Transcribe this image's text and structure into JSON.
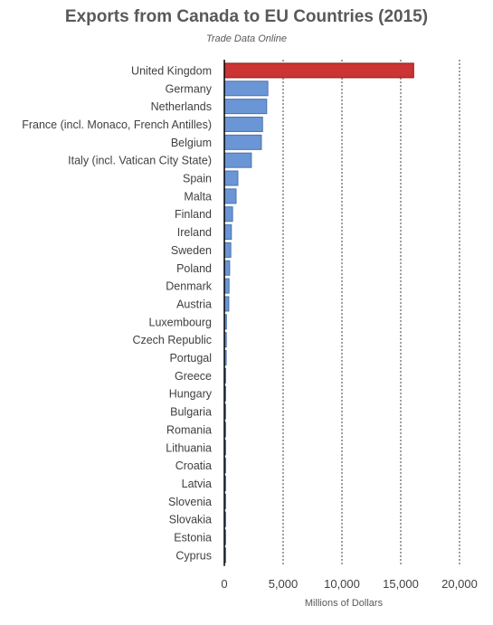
{
  "chart_data": {
    "type": "bar",
    "orientation": "horizontal",
    "title": "Exports from Canada to EU Countries (2015)",
    "subtitle": "Trade Data Online",
    "xlabel": "Millions of Dollars",
    "ylabel": "",
    "xlim": [
      0,
      20000
    ],
    "xticks": [
      0,
      5000,
      10000,
      15000,
      20000
    ],
    "xtick_labels": [
      "0",
      "5,000",
      "10,000",
      "15,000",
      "20,000"
    ],
    "grid": "vertical dotted",
    "legend": "none",
    "categories": [
      "United Kingdom",
      "Germany",
      "Netherlands",
      "France (incl. Monaco, French Antilles)",
      "Belgium",
      "Italy (incl. Vatican City State)",
      "Spain",
      "Malta",
      "Finland",
      "Ireland",
      "Sweden",
      "Poland",
      "Denmark",
      "Austria",
      "Luxembourg",
      "Czech Republic",
      "Portugal",
      "Greece",
      "Hungary",
      "Bulgaria",
      "Romania",
      "Lithuania",
      "Croatia",
      "Latvia",
      "Slovenia",
      "Slovakia",
      "Estonia",
      "Cyprus"
    ],
    "values": [
      16100,
      3700,
      3600,
      3250,
      3150,
      2300,
      1150,
      1000,
      700,
      600,
      550,
      450,
      400,
      380,
      180,
      170,
      160,
      90,
      80,
      70,
      70,
      60,
      50,
      40,
      40,
      30,
      25,
      20
    ],
    "colors": {
      "highlight": "#cc3333",
      "highlight_edge": "#8b1a1a",
      "bar": "#6b96d6",
      "bar_edge": "#4a72b0",
      "grid": "#404040"
    },
    "highlight_index": 0
  }
}
